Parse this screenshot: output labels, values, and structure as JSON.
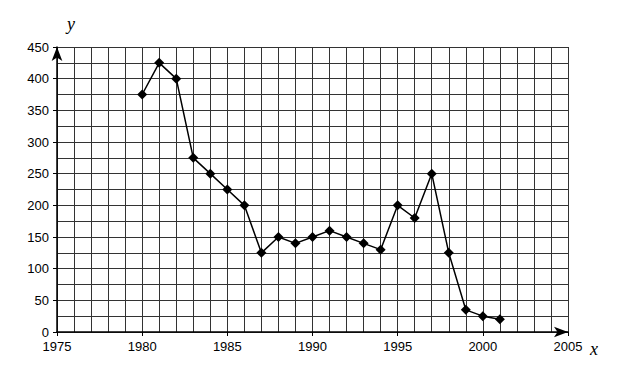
{
  "chart_data": {
    "type": "line",
    "xlabel": "x",
    "ylabel": "y",
    "x": [
      1980,
      1981,
      1982,
      1983,
      1984,
      1985,
      1986,
      1987,
      1988,
      1989,
      1990,
      1991,
      1992,
      1993,
      1994,
      1995,
      1996,
      1997,
      1998,
      1999,
      2000,
      2001
    ],
    "values": [
      375,
      425,
      400,
      275,
      250,
      225,
      200,
      125,
      150,
      140,
      150,
      160,
      150,
      140,
      130,
      200,
      180,
      250,
      125,
      35,
      25,
      20
    ],
    "color": "#000000",
    "marker": "diamond",
    "xlim": [
      1975,
      2005
    ],
    "xticks": [
      1975,
      1980,
      1985,
      1990,
      1995,
      2000,
      2005
    ],
    "ylim": [
      0,
      450
    ],
    "yticks": [
      0,
      50,
      100,
      150,
      200,
      250,
      300,
      350,
      400,
      450
    ],
    "grid": true
  }
}
